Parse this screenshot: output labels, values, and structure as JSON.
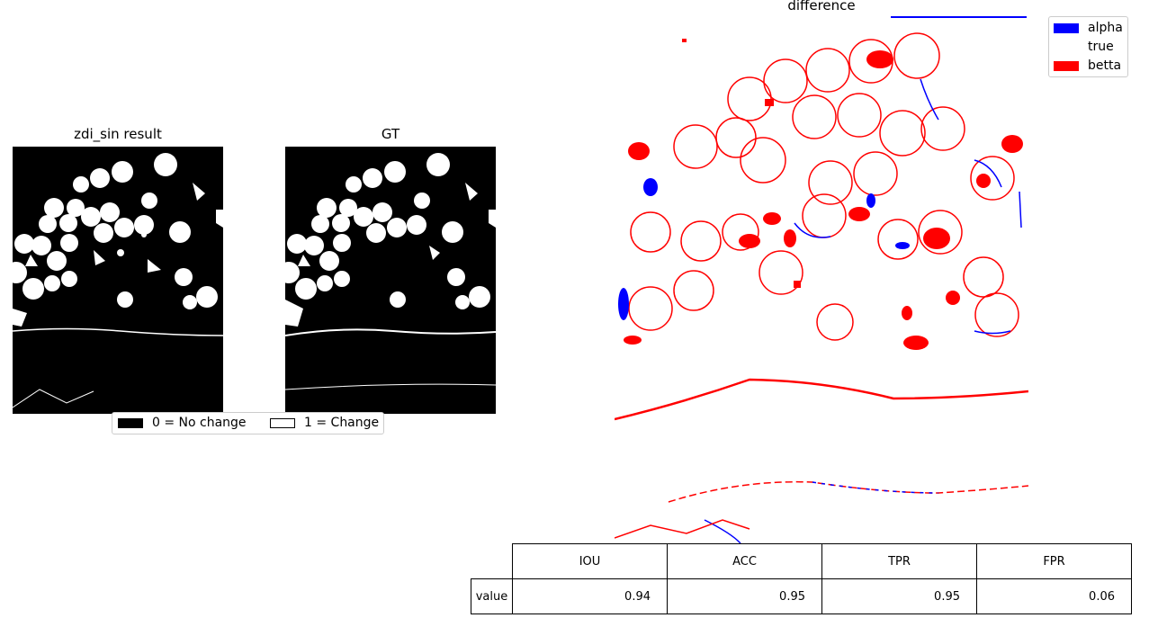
{
  "chart_data": [
    {
      "type": "image",
      "title": "zdi_sin result"
    },
    {
      "type": "image",
      "title": "GT",
      "legend": {
        "entries": [
          {
            "label": "0 = No change",
            "color": "#000000"
          },
          {
            "label": "1 = Change",
            "color": "#ffffff"
          }
        ],
        "placement": "bottom-center"
      }
    },
    {
      "type": "image",
      "title": "difference",
      "legend": {
        "entries": [
          {
            "label": "alpha",
            "color": "#0000ff"
          },
          {
            "label": "true",
            "color": "#ffffff"
          },
          {
            "label": "betta",
            "color": "#ff0000"
          }
        ],
        "placement": "upper-right"
      }
    },
    {
      "type": "table",
      "columns": [
        "IOU",
        "ACC",
        "TPR",
        "FPR"
      ],
      "rows": [
        {
          "label": "value",
          "values": [
            "0.94",
            "0.95",
            "0.95",
            "0.06"
          ]
        }
      ]
    }
  ]
}
